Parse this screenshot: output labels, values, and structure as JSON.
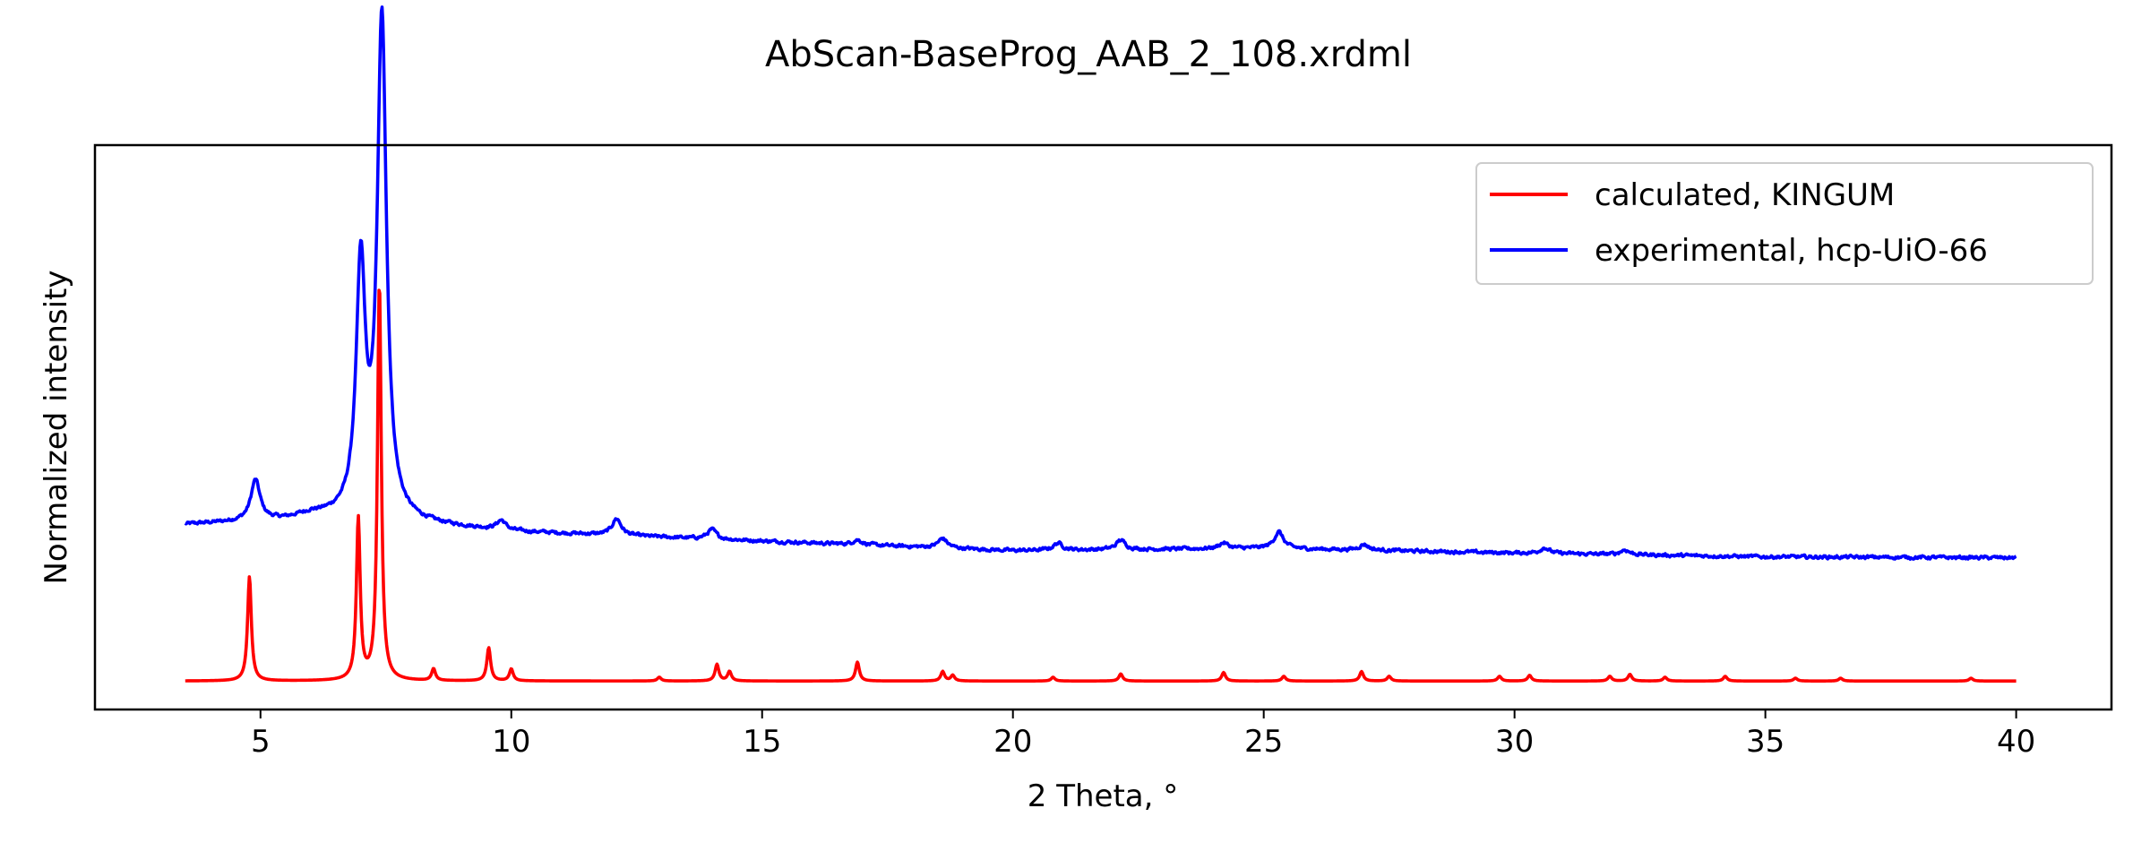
{
  "chart_data": {
    "type": "line",
    "title": "AbScan-BaseProg_AAB_2_108.xrdml",
    "xlabel": "2 Theta, °",
    "ylabel": "Normalized intensity",
    "xlim": [
      1.7,
      41.9
    ],
    "ylim": [
      -0.06,
      1.13
    ],
    "xticks": [
      5,
      10,
      15,
      20,
      25,
      30,
      35,
      40
    ],
    "yticks_shown": false,
    "grid": false,
    "legend": {
      "position": "top-right"
    },
    "x_range": [
      3.5,
      40.0
    ],
    "series": [
      {
        "name": "calculated, KINGUM",
        "color": "#ff0000",
        "baseline": 0.0,
        "peaks": [
          {
            "x": 4.78,
            "y": 0.22
          },
          {
            "x": 6.95,
            "y": 0.34
          },
          {
            "x": 7.37,
            "y": 0.84
          },
          {
            "x": 8.45,
            "y": 0.025
          },
          {
            "x": 9.55,
            "y": 0.07
          },
          {
            "x": 10.0,
            "y": 0.025
          },
          {
            "x": 12.95,
            "y": 0.008
          },
          {
            "x": 14.1,
            "y": 0.035
          },
          {
            "x": 14.35,
            "y": 0.02
          },
          {
            "x": 16.9,
            "y": 0.04
          },
          {
            "x": 18.6,
            "y": 0.02
          },
          {
            "x": 18.8,
            "y": 0.012
          },
          {
            "x": 20.8,
            "y": 0.008
          },
          {
            "x": 22.15,
            "y": 0.015
          },
          {
            "x": 24.2,
            "y": 0.018
          },
          {
            "x": 25.4,
            "y": 0.01
          },
          {
            "x": 26.95,
            "y": 0.02
          },
          {
            "x": 27.5,
            "y": 0.01
          },
          {
            "x": 29.7,
            "y": 0.01
          },
          {
            "x": 30.3,
            "y": 0.012
          },
          {
            "x": 31.9,
            "y": 0.01
          },
          {
            "x": 32.3,
            "y": 0.014
          },
          {
            "x": 33.0,
            "y": 0.008
          },
          {
            "x": 34.2,
            "y": 0.01
          },
          {
            "x": 35.6,
            "y": 0.006
          },
          {
            "x": 36.5,
            "y": 0.006
          },
          {
            "x": 39.1,
            "y": 0.006
          }
        ]
      },
      {
        "name": "experimental, hcp-UiO-66",
        "color": "#0000ff",
        "baseline_points": [
          {
            "x": 3.5,
            "y": 0.33
          },
          {
            "x": 5.5,
            "y": 0.34
          },
          {
            "x": 6.0,
            "y": 0.35
          },
          {
            "x": 10.0,
            "y": 0.315
          },
          {
            "x": 15.0,
            "y": 0.295
          },
          {
            "x": 20.0,
            "y": 0.275
          },
          {
            "x": 25.0,
            "y": 0.28
          },
          {
            "x": 30.0,
            "y": 0.27
          },
          {
            "x": 35.0,
            "y": 0.262
          },
          {
            "x": 40.0,
            "y": 0.26
          }
        ],
        "peaks": [
          {
            "x": 4.9,
            "y": 0.085
          },
          {
            "x": 7.0,
            "y": 0.52
          },
          {
            "x": 7.42,
            "y": 1.05
          },
          {
            "x": 9.8,
            "y": 0.02
          },
          {
            "x": 12.1,
            "y": 0.035
          },
          {
            "x": 14.0,
            "y": 0.02
          },
          {
            "x": 16.9,
            "y": 0.01
          },
          {
            "x": 18.6,
            "y": 0.02
          },
          {
            "x": 20.9,
            "y": 0.015
          },
          {
            "x": 22.15,
            "y": 0.02
          },
          {
            "x": 24.2,
            "y": 0.012
          },
          {
            "x": 25.3,
            "y": 0.035
          },
          {
            "x": 27.0,
            "y": 0.012
          },
          {
            "x": 30.6,
            "y": 0.012
          },
          {
            "x": 32.2,
            "y": 0.01
          }
        ],
        "noise_amplitude": 0.006
      }
    ]
  }
}
